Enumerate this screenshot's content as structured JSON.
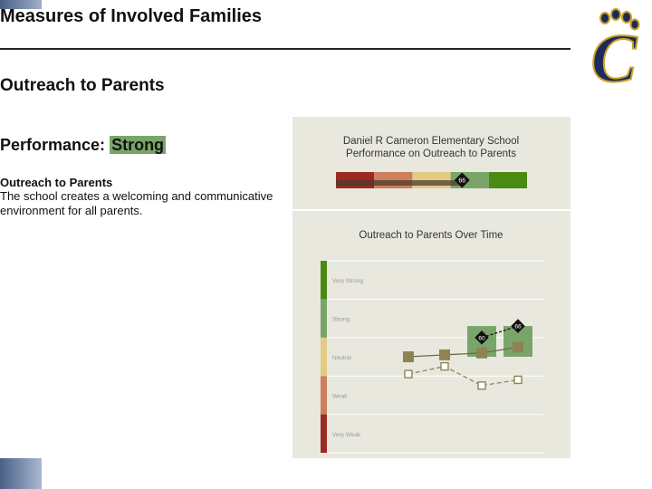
{
  "slide": {
    "title": "Measures of Involved Families",
    "subtitle": "Outreach to Parents",
    "performance_label": "Performance:",
    "performance_value": "Strong",
    "section_heading": "Outreach to Parents",
    "section_text": "The school creates a welcoming and communicative environment for all parents."
  },
  "logo": {
    "letter": "C",
    "colors": {
      "navy": "#1d2a5c",
      "gold": "#c9a227"
    }
  },
  "rating_colors": {
    "very_weak": "#9b2a22",
    "weak": "#cc7f5a",
    "neutral": "#e2cb82",
    "strong": "#7aa56a",
    "very_strong": "#4a8a12"
  },
  "chart_data": [
    {
      "type": "bar",
      "title_line1": "Daniel R Cameron Elementary School",
      "title_line2": "Performance on Outreach to Parents",
      "value": 66,
      "xlim": [
        0,
        100
      ]
    },
    {
      "type": "line",
      "title": "Outreach to Parents Over Time",
      "categories": [
        "Very Weak",
        "Weak",
        "Neutral",
        "Strong",
        "Very Strong"
      ],
      "x": [
        1,
        2,
        3,
        4
      ],
      "ylim": [
        0,
        100
      ],
      "series": [
        {
          "style": "solid-filled-square",
          "values": [
            50,
            51,
            52,
            55
          ]
        },
        {
          "style": "dashed-open-square",
          "values": [
            41,
            45,
            35,
            38
          ]
        },
        {
          "style": "diamond-label",
          "points": [
            {
              "x": 3,
              "value": 60
            },
            {
              "x": 4,
              "value": 66
            }
          ]
        }
      ],
      "bars": [
        {
          "x": 3,
          "value": 66
        },
        {
          "x": 4,
          "value": 66
        }
      ]
    }
  ]
}
